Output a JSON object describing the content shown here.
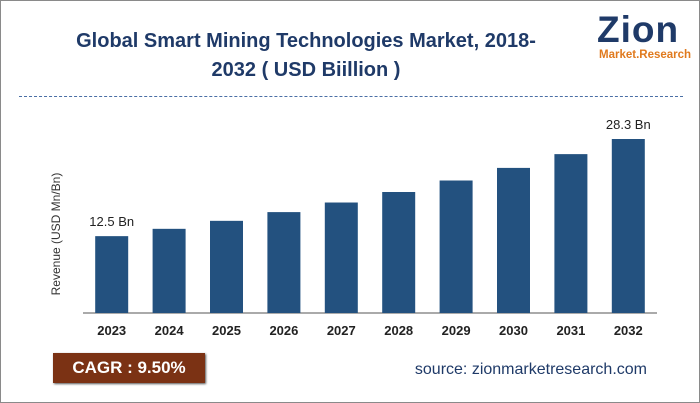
{
  "header": {
    "title_line1": "Global Smart Mining Technologies Market, 2018-",
    "title_line2": "2032 ( USD Biillion )"
  },
  "logo": {
    "main": "Zion",
    "sub_a": "Market.",
    "sub_b": "Research"
  },
  "footer": {
    "cagr": "CAGR :  9.50%",
    "source": "source: zionmarketresearch.com"
  },
  "colors": {
    "bar": "#23517f",
    "title": "#1f3a68",
    "cagr_bg": "#7b3214",
    "axis": "#333333"
  },
  "chart_data": {
    "type": "bar",
    "categories": [
      "2023",
      "2024",
      "2025",
      "2026",
      "2027",
      "2028",
      "2029",
      "2030",
      "2031",
      "2032"
    ],
    "values": [
      12.5,
      13.69,
      14.99,
      16.41,
      17.97,
      19.68,
      21.55,
      23.6,
      25.84,
      28.3
    ],
    "data_labels": [
      "12.5 Bn",
      "",
      "",
      "",
      "",
      "",
      "",
      "",
      "",
      "28.3 Bn"
    ],
    "ylabel": "Revenue (USD Mn/Bn)",
    "xlabel": "",
    "ylim": [
      0,
      28.3
    ],
    "grid": false,
    "legend": false
  }
}
